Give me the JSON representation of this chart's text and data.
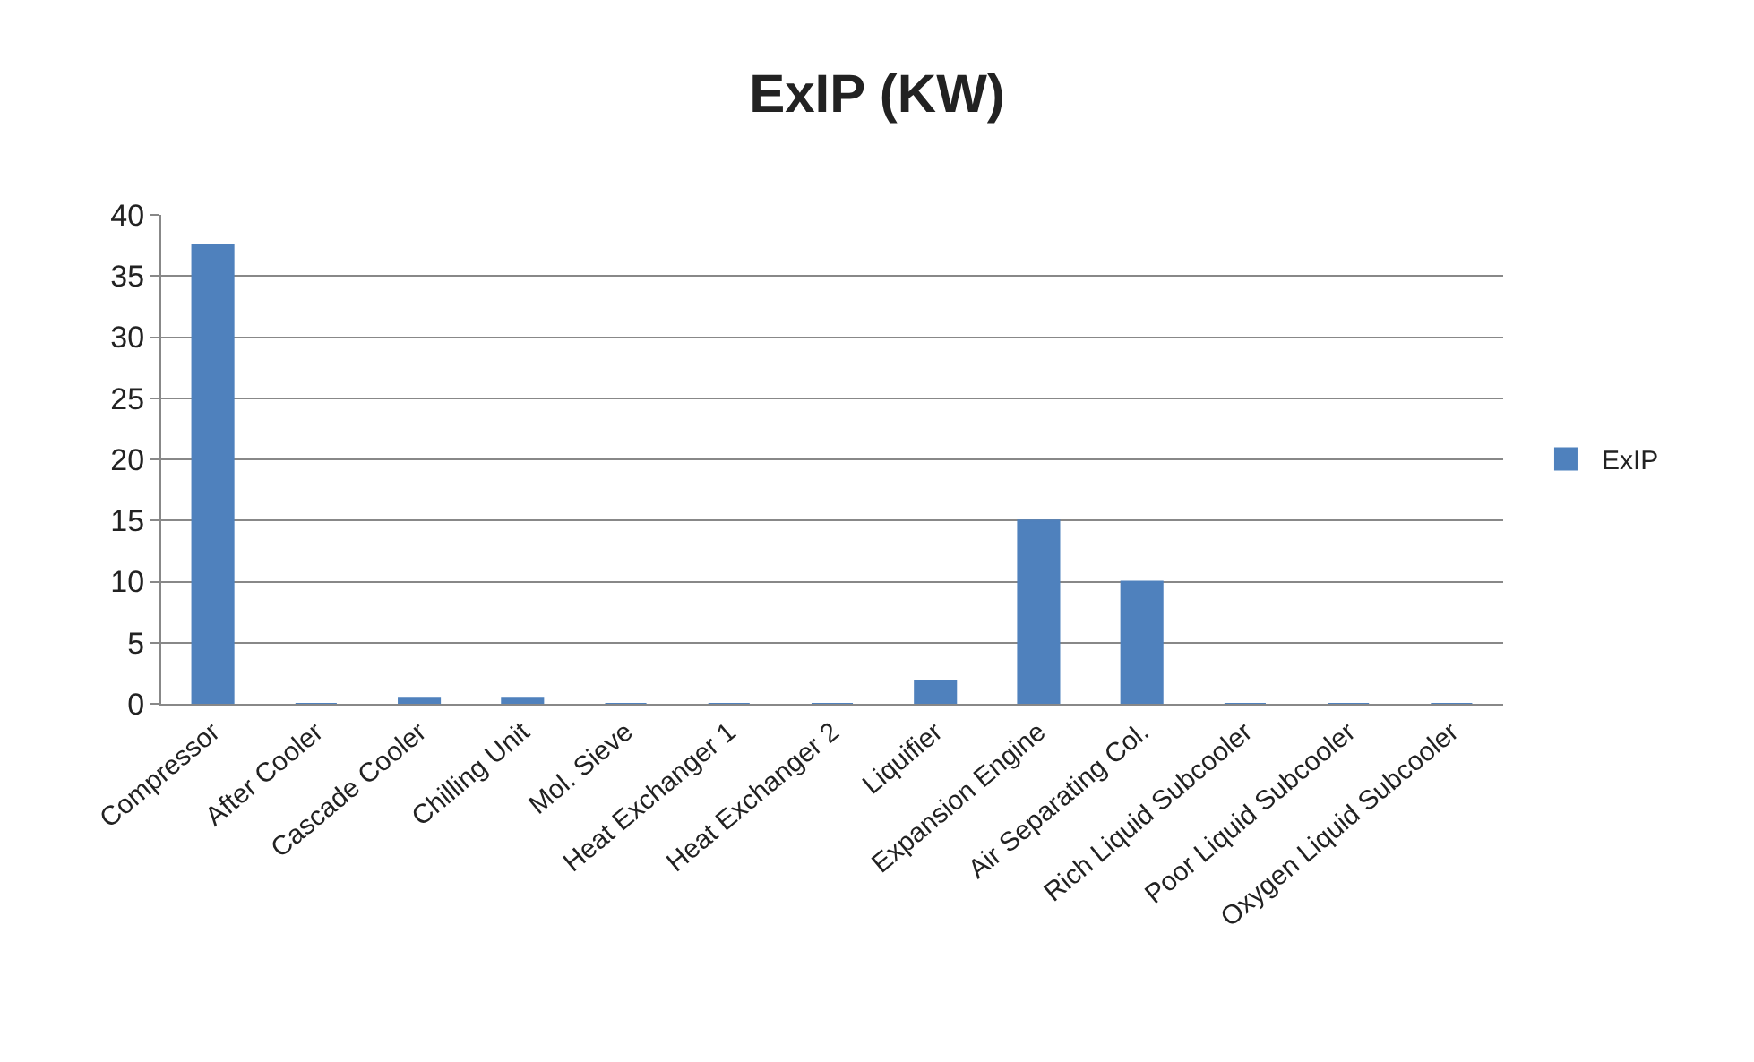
{
  "chart_data": {
    "type": "bar",
    "title": "ExIP (KW)",
    "categories": [
      "Compressor",
      "After Cooler",
      "Cascade Cooler",
      "Chilling Unit",
      "Mol. Sieve",
      "Heat Exchanger 1",
      "Heat Exchanger 2",
      "Liquifier",
      "Expansion Engine",
      "Air Separating Col.",
      "Rich Liquid Subcooler",
      "Poor Liquid Subcooler",
      "Oxygen Liquid Subcooler"
    ],
    "series": [
      {
        "name": "ExIP",
        "color": "#4f81bd",
        "values": [
          37.5,
          0,
          0.5,
          0.5,
          0,
          0,
          0,
          1.9,
          15,
          10,
          0,
          0,
          0
        ]
      }
    ],
    "ylim": [
      0,
      40
    ],
    "yticks": [
      0,
      5,
      10,
      15,
      20,
      25,
      30,
      35,
      40
    ],
    "grid": "y",
    "legend": "right"
  }
}
